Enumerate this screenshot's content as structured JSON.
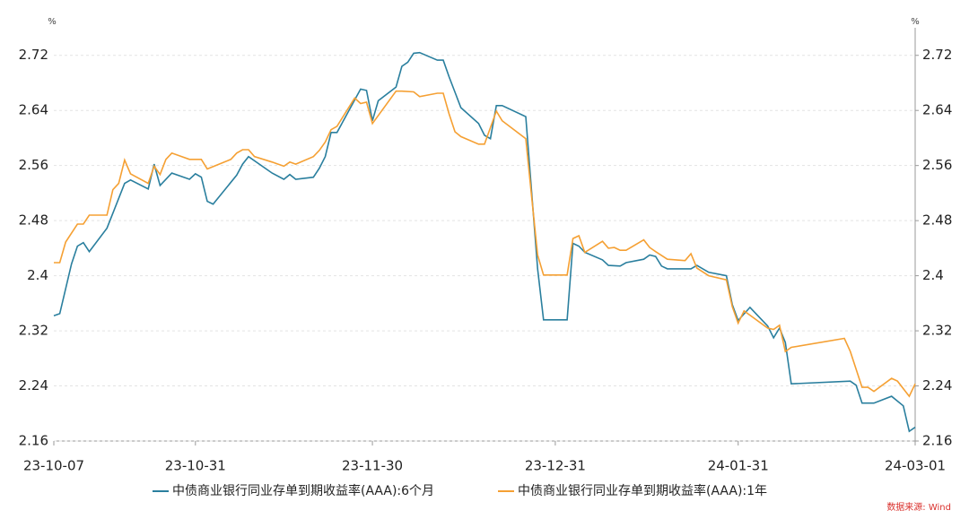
{
  "chart_data": {
    "type": "line",
    "y_unit": "%",
    "y2_unit": "%",
    "source": "数据来源: Wind",
    "xlim": [
      "23-10-07",
      "24-03-01"
    ],
    "xticks": [
      "23-10-07",
      "23-10-31",
      "23-11-30",
      "23-12-31",
      "24-01-31",
      "24-03-01"
    ],
    "ylim": [
      2.16,
      2.76
    ],
    "yticks": [
      2.16,
      2.24,
      2.32,
      2.4,
      2.48,
      2.56,
      2.64,
      2.72
    ],
    "y2lim": [
      2.16,
      2.76
    ],
    "y2ticks": [
      2.16,
      2.24,
      2.32,
      2.4,
      2.48,
      2.56,
      2.64,
      2.72
    ],
    "grid": true,
    "legend": "bottom",
    "series": [
      {
        "name": "中债商业银行同业存单到期收益率(AAA):6个月",
        "color": "#2a7f9e",
        "x": [
          "23-10-07",
          "23-10-08",
          "23-10-10",
          "23-10-11",
          "23-10-12",
          "23-10-13",
          "23-10-16",
          "23-10-19",
          "23-10-20",
          "23-10-23",
          "23-10-24",
          "23-10-25",
          "23-10-27",
          "23-10-30",
          "23-10-31",
          "23-11-01",
          "23-11-02",
          "23-11-03",
          "23-11-07",
          "23-11-08",
          "23-11-09",
          "23-11-13",
          "23-11-15",
          "23-11-16",
          "23-11-17",
          "23-11-20",
          "23-11-21",
          "23-11-22",
          "23-11-23",
          "23-11-24",
          "23-11-28",
          "23-11-29",
          "23-11-30",
          "23-12-01",
          "23-12-04",
          "23-12-05",
          "23-12-06",
          "23-12-07",
          "23-12-08",
          "23-12-11",
          "23-12-12",
          "23-12-13",
          "23-12-15",
          "23-12-18",
          "23-12-19",
          "23-12-20",
          "23-12-21",
          "23-12-22",
          "23-12-26",
          "23-12-28",
          "23-12-29",
          "24-01-02",
          "24-01-03",
          "24-01-04",
          "24-01-05",
          "24-01-08",
          "24-01-09",
          "24-01-11",
          "24-01-12",
          "24-01-15",
          "24-01-16",
          "24-01-17",
          "24-01-18",
          "24-01-19",
          "24-01-23",
          "24-01-24",
          "24-01-26",
          "24-01-29",
          "24-01-30",
          "24-01-31",
          "24-02-02",
          "24-02-05",
          "24-02-06",
          "24-02-07",
          "24-02-08",
          "24-02-09",
          "24-02-19",
          "24-02-20",
          "24-02-21",
          "24-02-23",
          "24-02-26",
          "24-02-28",
          "24-02-29",
          "24-03-01"
        ],
        "values": [
          2.342,
          2.345,
          2.417,
          2.443,
          2.448,
          2.435,
          2.469,
          2.534,
          2.539,
          2.526,
          2.562,
          2.531,
          2.549,
          2.54,
          2.548,
          2.543,
          2.508,
          2.504,
          2.546,
          2.562,
          2.573,
          2.549,
          2.54,
          2.547,
          2.54,
          2.543,
          2.556,
          2.573,
          2.608,
          2.608,
          2.671,
          2.669,
          2.625,
          2.654,
          2.674,
          2.704,
          2.71,
          2.723,
          2.724,
          2.713,
          2.713,
          2.689,
          2.644,
          2.621,
          2.604,
          2.599,
          2.647,
          2.647,
          2.631,
          2.41,
          2.336,
          2.336,
          2.447,
          2.443,
          2.434,
          2.423,
          2.415,
          2.414,
          2.419,
          2.424,
          2.43,
          2.428,
          2.414,
          2.41,
          2.41,
          2.415,
          2.405,
          2.4,
          2.358,
          2.335,
          2.354,
          2.327,
          2.31,
          2.324,
          2.303,
          2.243,
          2.247,
          2.241,
          2.215,
          2.215,
          2.225,
          2.211,
          2.174,
          2.18
        ]
      },
      {
        "name": "中债商业银行同业存单到期收益率(AAA):1年",
        "color": "#f5a033",
        "x": [
          "23-10-07",
          "23-10-08",
          "23-10-09",
          "23-10-11",
          "23-10-12",
          "23-10-13",
          "23-10-16",
          "23-10-17",
          "23-10-18",
          "23-10-19",
          "23-10-20",
          "23-10-23",
          "23-10-24",
          "23-10-25",
          "23-10-26",
          "23-10-27",
          "23-10-30",
          "23-11-01",
          "23-11-02",
          "23-11-06",
          "23-11-07",
          "23-11-08",
          "23-11-09",
          "23-11-10",
          "23-11-13",
          "23-11-14",
          "23-11-15",
          "23-11-16",
          "23-11-17",
          "23-11-20",
          "23-11-21",
          "23-11-22",
          "23-11-23",
          "23-11-24",
          "23-11-27",
          "23-11-28",
          "23-11-29",
          "23-11-30",
          "23-12-04",
          "23-12-05",
          "23-12-07",
          "23-12-08",
          "23-12-11",
          "23-12-12",
          "23-12-13",
          "23-12-14",
          "23-12-15",
          "23-12-18",
          "23-12-19",
          "23-12-21",
          "23-12-22",
          "23-12-26",
          "23-12-27",
          "23-12-28",
          "23-12-29",
          "24-01-02",
          "24-01-03",
          "24-01-04",
          "24-01-05",
          "24-01-08",
          "24-01-09",
          "24-01-10",
          "24-01-11",
          "24-01-12",
          "24-01-15",
          "24-01-16",
          "24-01-17",
          "24-01-19",
          "24-01-22",
          "24-01-23",
          "24-01-24",
          "24-01-26",
          "24-01-29",
          "24-01-30",
          "24-01-31",
          "24-02-01",
          "24-02-05",
          "24-02-06",
          "24-02-07",
          "24-02-08",
          "24-02-09",
          "24-02-18",
          "24-02-19",
          "24-02-21",
          "24-02-22",
          "24-02-23",
          "24-02-26",
          "24-02-27",
          "24-02-29",
          "24-03-01"
        ],
        "values": [
          2.419,
          2.419,
          2.449,
          2.475,
          2.475,
          2.488,
          2.488,
          2.525,
          2.534,
          2.568,
          2.548,
          2.534,
          2.559,
          2.547,
          2.569,
          2.578,
          2.569,
          2.569,
          2.555,
          2.569,
          2.578,
          2.583,
          2.583,
          2.573,
          2.565,
          2.562,
          2.559,
          2.565,
          2.562,
          2.573,
          2.582,
          2.594,
          2.612,
          2.617,
          2.658,
          2.65,
          2.652,
          2.621,
          2.668,
          2.668,
          2.667,
          2.66,
          2.665,
          2.665,
          2.635,
          2.609,
          2.602,
          2.591,
          2.591,
          2.639,
          2.625,
          2.599,
          2.514,
          2.43,
          2.401,
          2.401,
          2.454,
          2.458,
          2.434,
          2.45,
          2.44,
          2.441,
          2.437,
          2.437,
          2.452,
          2.441,
          2.435,
          2.424,
          2.422,
          2.432,
          2.411,
          2.4,
          2.394,
          2.355,
          2.331,
          2.349,
          2.324,
          2.322,
          2.328,
          2.29,
          2.296,
          2.309,
          2.29,
          2.238,
          2.238,
          2.232,
          2.251,
          2.247,
          2.225,
          2.243
        ]
      }
    ]
  }
}
